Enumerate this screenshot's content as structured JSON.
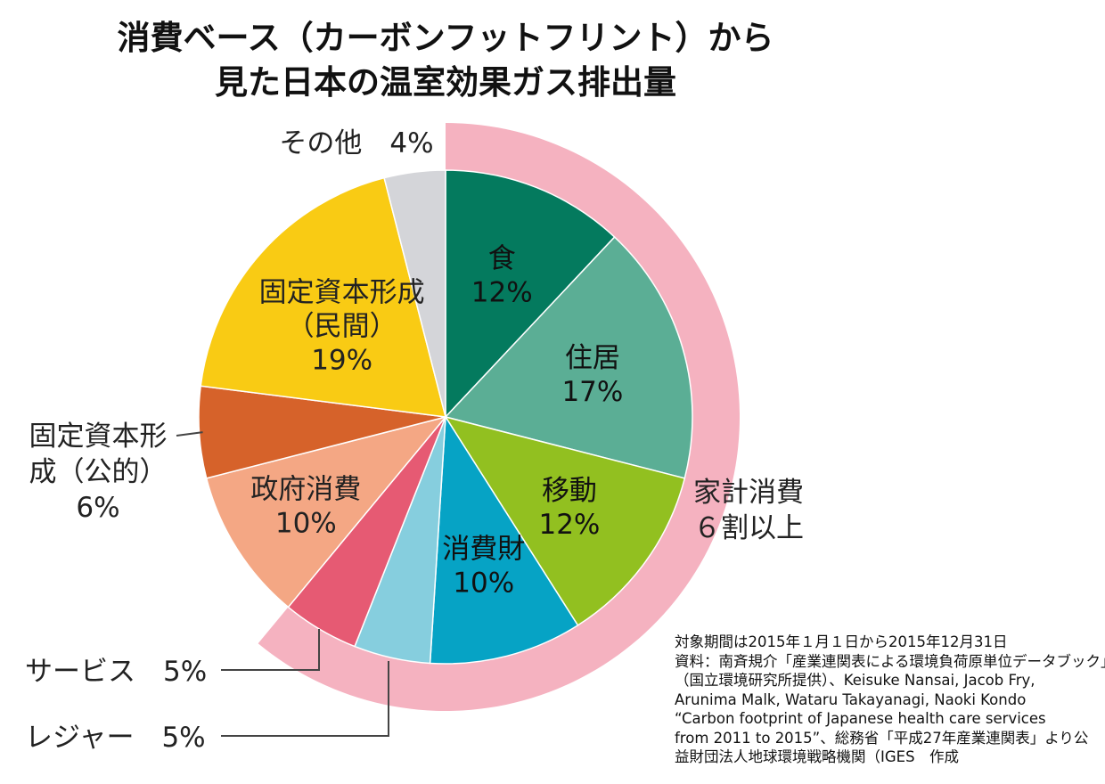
{
  "title": {
    "line1": "消費ベース（カーボンフットフリント）から",
    "line2": "見た日本の温室効果ガス排出量"
  },
  "chart_data": {
    "type": "pie",
    "title": "消費ベース（カーボンフットフリント）から見た日本の温室効果ガス排出量",
    "unit": "%",
    "slices": [
      {
        "name": "食",
        "label_lines": [
          "食",
          "12%"
        ],
        "value": 12,
        "color": "#047A5E",
        "text_color": "#111111",
        "group": "household"
      },
      {
        "name": "住居",
        "label_lines": [
          "住居",
          "17%"
        ],
        "value": 17,
        "color": "#5BAE95",
        "text_color": "#111111",
        "group": "household"
      },
      {
        "name": "移動",
        "label_lines": [
          "移動",
          "12%"
        ],
        "value": 12,
        "color": "#92C020",
        "text_color": "#111111",
        "group": "household"
      },
      {
        "name": "消費財",
        "label_lines": [
          "消費財",
          "10%"
        ],
        "value": 10,
        "color": "#06A3C5",
        "text_color": "#111111",
        "group": "household"
      },
      {
        "name": "レジャー",
        "value": 5,
        "color": "#86CEDE",
        "group": "household"
      },
      {
        "name": "サービス",
        "value": 5,
        "color": "#E65A73",
        "group": "household"
      },
      {
        "name": "政府消費",
        "label_lines": [
          "政府消費",
          "10%"
        ],
        "value": 10,
        "color": "#F4A784",
        "text_color": "#222222",
        "group": "other"
      },
      {
        "name": "固定資本形成（公的）",
        "value": 6,
        "color": "#D6622A",
        "group": "other"
      },
      {
        "name": "固定資本形成（民間）",
        "label_lines": [
          "固定資本形成",
          "（民間）",
          "19%"
        ],
        "value": 19,
        "color": "#F9CB14",
        "text_color": "#222222",
        "group": "other"
      },
      {
        "name": "その他",
        "value": 4,
        "color": "#D4D5D9",
        "group": "other"
      }
    ],
    "external_labels": {
      "other": "その他　4%",
      "koteki": [
        "固定資本形",
        "成（公的）",
        "6%"
      ],
      "service": "サービス　5%",
      "leisure": "レジャー　5%"
    },
    "household_band": {
      "label_lines": [
        "家計消費",
        "６割以上"
      ],
      "color": "#F5B2C0"
    }
  },
  "source": {
    "lines": [
      "対象期間は2015年１月１日から2015年12月31日",
      "資料：南斉規介「産業連関表による環境負荷原単位データブック」",
      "（国立環境研究所提供）、Keisuke Nansai, Jacob Fry,",
      "Arunima Malk, Wataru Takayanagi, Naoki Kondo",
      "“Carbon footprint of Japanese health care services",
      "from 2011 to 2015”、総務省「平成27年産業連関表」より公",
      "益財団法人地球環境戦略機関（IGES　作成"
    ]
  }
}
